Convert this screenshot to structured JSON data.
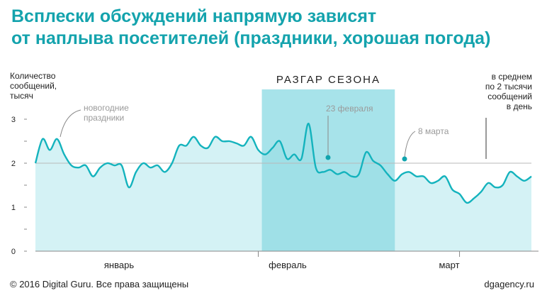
{
  "title": {
    "line1": "Всплески обсуждений напрямую зависят",
    "line2": "от наплыва посетителей (праздники, хорошая погода)"
  },
  "footer": {
    "copyright": "© 2016 Digital Guru. Все права защищены",
    "site": "dgagency.ru"
  },
  "colors": {
    "title": "#14a3ad",
    "line": "#14b3bd",
    "area": "#cdf0f3",
    "season": "#a7e3ea",
    "annotation": "#9a9a9a"
  },
  "chart_data": {
    "type": "area",
    "ylabel": [
      "Количество",
      "сообщений,",
      "тысяч"
    ],
    "yticks": [
      "0",
      "1",
      "2",
      "3"
    ],
    "ylim": [
      0,
      3.4
    ],
    "reference_line": 2,
    "xlim": [
      0,
      69
    ],
    "month_labels": [
      {
        "label": "январь",
        "x": 16
      },
      {
        "label": "февраль",
        "x": 48
      },
      {
        "label": "март",
        "x": 78
      }
    ],
    "month_boundaries": [
      31,
      59
    ],
    "season_band": {
      "label": "РАЗГАР СЕЗОНА",
      "from": 31.5,
      "to": 50
    },
    "x": [
      0,
      1,
      2,
      3,
      4,
      5,
      6,
      7,
      8,
      9,
      10,
      11,
      12,
      13,
      14,
      15,
      16,
      17,
      18,
      19,
      20,
      21,
      22,
      23,
      24,
      25,
      26,
      27,
      28,
      29,
      30,
      31,
      32,
      33,
      34,
      35,
      36,
      37,
      38,
      39,
      40,
      41,
      42,
      43,
      44,
      45,
      46,
      47,
      48,
      49,
      50,
      51,
      52,
      53,
      54,
      55,
      56,
      57,
      58,
      59,
      60,
      61,
      62,
      63,
      64,
      65,
      66,
      67,
      68,
      69
    ],
    "values": [
      2.0,
      2.55,
      2.3,
      2.55,
      2.2,
      1.95,
      1.9,
      1.95,
      1.7,
      1.9,
      2.0,
      1.95,
      1.95,
      1.45,
      1.8,
      2.0,
      1.9,
      1.95,
      1.8,
      2.0,
      2.4,
      2.4,
      2.6,
      2.4,
      2.35,
      2.6,
      2.5,
      2.5,
      2.45,
      2.4,
      2.6,
      2.3,
      2.2,
      2.35,
      2.5,
      2.1,
      2.2,
      2.1,
      2.9,
      1.9,
      1.8,
      1.85,
      1.75,
      1.8,
      1.7,
      1.75,
      2.25,
      2.05,
      1.95,
      1.75,
      1.6,
      1.75,
      1.8,
      1.7,
      1.7,
      1.55,
      1.6,
      1.7,
      1.4,
      1.3,
      1.1,
      1.2,
      1.35,
      1.55,
      1.45,
      1.5,
      1.8,
      1.7,
      1.6,
      1.7
    ],
    "annotations": [
      {
        "text": [
          "новогодние",
          "праздники"
        ],
        "x": 3
      },
      {
        "text": [
          "23 февраля"
        ],
        "x": 47
      },
      {
        "text": [
          "8 марта"
        ],
        "x": 64
      },
      {
        "text": [
          "в среднем",
          "по 2 тысячи",
          "сообщений",
          "в день"
        ],
        "x": 74
      }
    ]
  }
}
